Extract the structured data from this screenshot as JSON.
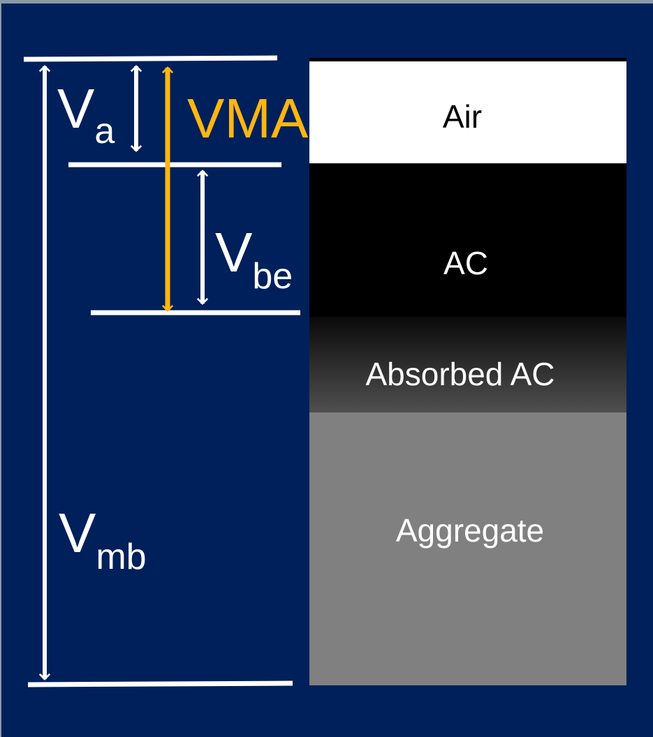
{
  "colors": {
    "background": "#00205b",
    "line": "#ffffff",
    "vma_accent": "#ffb612",
    "air": "#ffffff",
    "ac": "#000000",
    "absorbed_ac_top": "#0a0a0a",
    "absorbed_ac_bottom": "#4f4f4f",
    "aggregate": "#808080"
  },
  "segments": {
    "air": "Air",
    "ac": "AC",
    "absorbed_ac": "Absorbed AC",
    "aggregate": "Aggregate"
  },
  "labels": {
    "va": {
      "main": "V",
      "sub": "a"
    },
    "vbe": {
      "main": "V",
      "sub": "be"
    },
    "vmb": {
      "main": "V",
      "sub": "mb"
    },
    "vma": "VMA"
  }
}
